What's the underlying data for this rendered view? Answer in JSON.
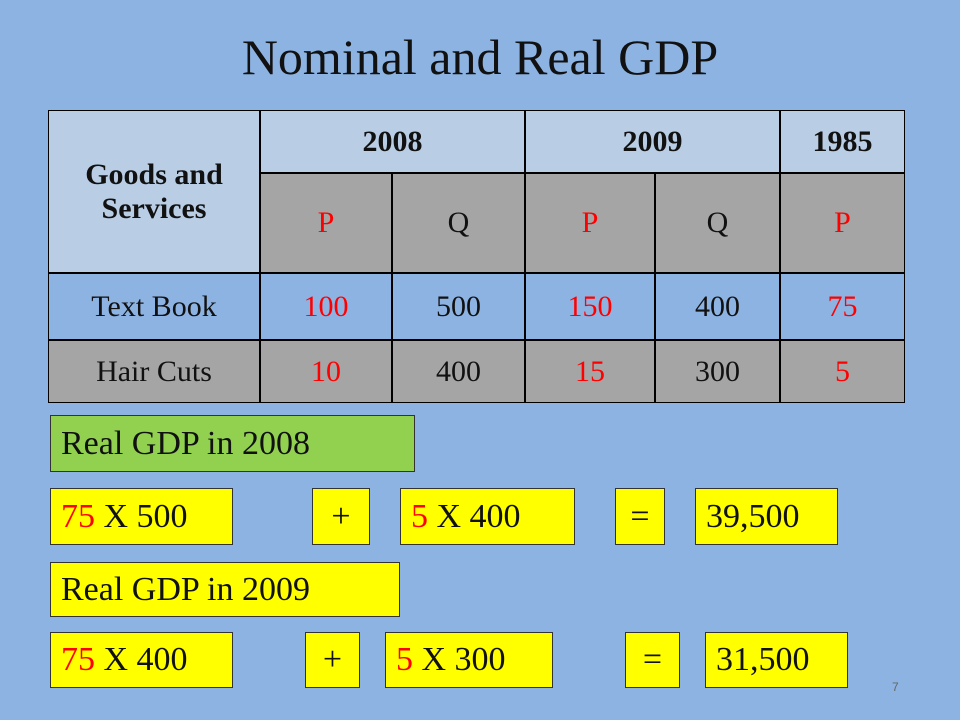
{
  "title": "Nominal and Real GDP",
  "table": {
    "header": [
      "Goods and Services",
      "2008",
      "2009",
      "1985"
    ],
    "subheader": [
      "P",
      "Q",
      "P",
      "Q",
      "P"
    ],
    "rows": [
      [
        "Text Book",
        "100",
        "500",
        "150",
        "400",
        "75"
      ],
      [
        "Hair Cuts",
        "10",
        "400",
        "15",
        "300",
        "5"
      ]
    ]
  },
  "calculations": [
    {
      "label": "Real GDP in 2008",
      "terms": [
        {
          "price": "75",
          "rest": "X 500"
        },
        {
          "price": "5",
          "rest": "X 400"
        }
      ],
      "plus": "+",
      "equals": "=",
      "result": "39,500"
    },
    {
      "label": "Real GDP in 2009",
      "terms": [
        {
          "price": "75",
          "rest": "X 400"
        },
        {
          "price": "5",
          "rest": "X 300"
        }
      ],
      "plus": "+",
      "equals": "=",
      "result": "31,500"
    }
  ],
  "page_number": "7"
}
